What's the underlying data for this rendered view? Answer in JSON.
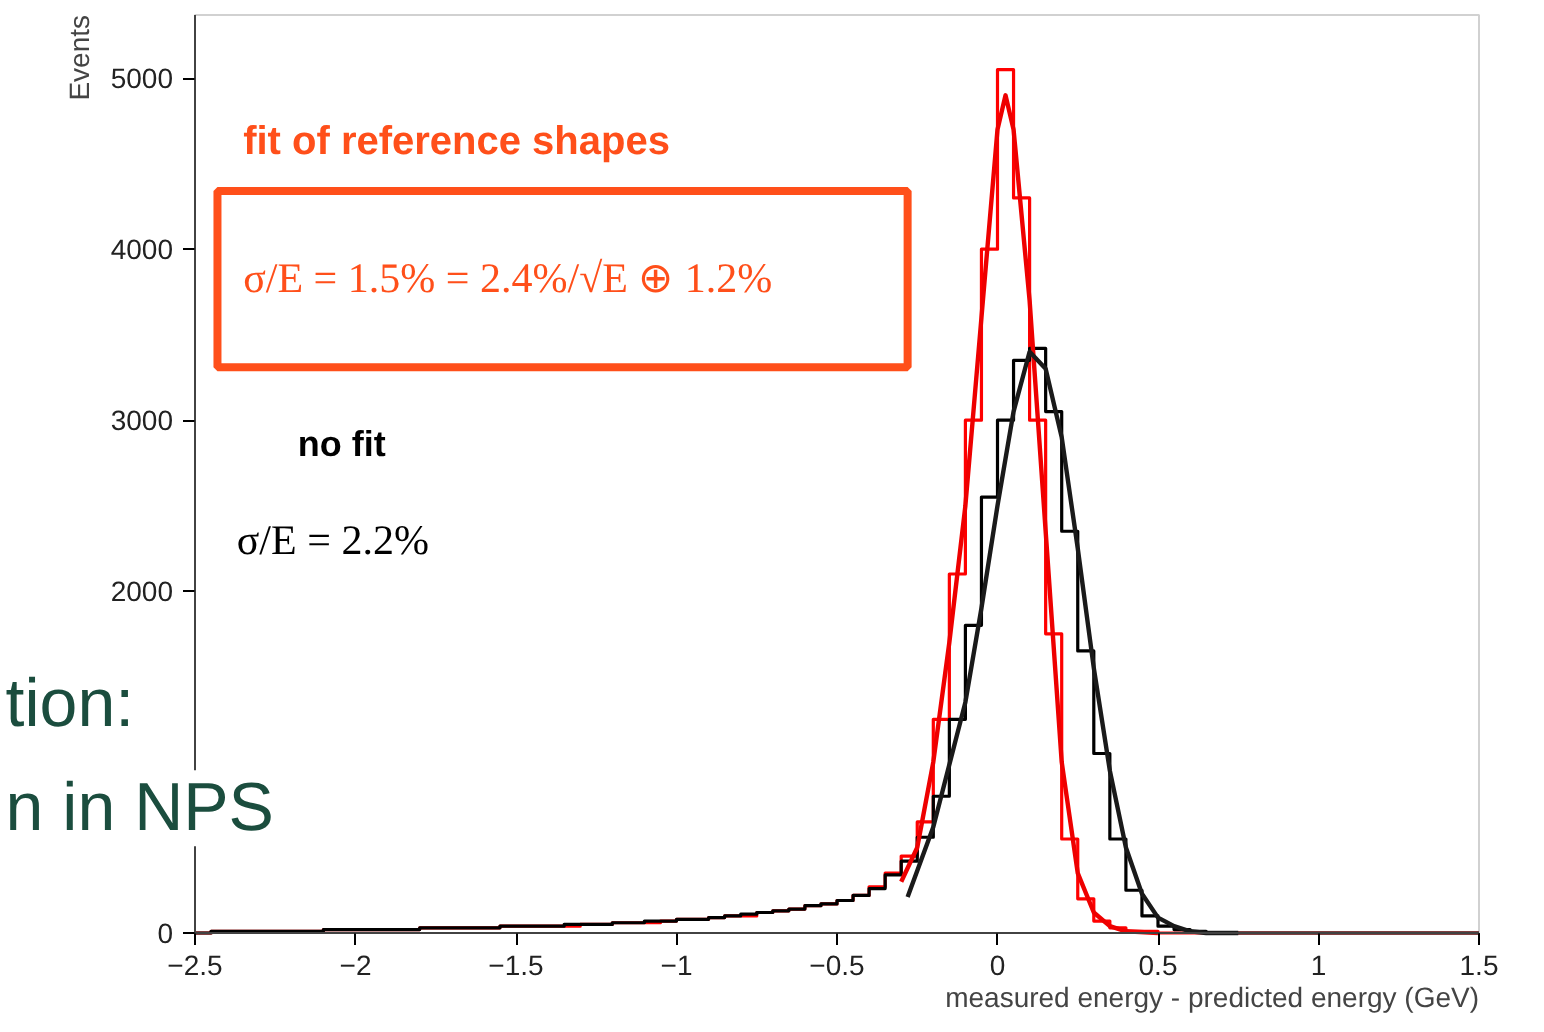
{
  "chart_data": {
    "type": "histogram",
    "xlabel": "measured energy - predicted energy (GeV)",
    "ylabel": "Events",
    "xlim": [
      -2.5,
      1.5
    ],
    "ylim": [
      0,
      5370
    ],
    "xticks": [
      -2.5,
      -2,
      -1.5,
      -1,
      -0.5,
      0,
      0.5,
      1,
      1.5
    ],
    "yticks": [
      0,
      2000,
      3000,
      4000,
      5000
    ],
    "bins": [
      -2.5,
      -2.45,
      -2.4,
      -2.35,
      -2.3,
      -2.25,
      -2.2,
      -2.15,
      -2.1,
      -2.05,
      -2.0,
      -1.95,
      -1.9,
      -1.85,
      -1.8,
      -1.75,
      -1.7,
      -1.65,
      -1.6,
      -1.55,
      -1.5,
      -1.45,
      -1.4,
      -1.35,
      -1.3,
      -1.25,
      -1.2,
      -1.15,
      -1.1,
      -1.05,
      -1.0,
      -0.95,
      -0.9,
      -0.85,
      -0.8,
      -0.75,
      -0.7,
      -0.65,
      -0.6,
      -0.55,
      -0.5,
      -0.45,
      -0.4,
      -0.35,
      -0.3,
      -0.25,
      -0.2,
      -0.15,
      -0.1,
      -0.05,
      0.0,
      0.05,
      0.1,
      0.15,
      0.2,
      0.25,
      0.3,
      0.35,
      0.4,
      0.45,
      0.5,
      0.55,
      0.6,
      0.65,
      0.7,
      0.75,
      0.8,
      0.85,
      0.9,
      0.95,
      1.0,
      1.05,
      1.1,
      1.15,
      1.2,
      1.25,
      1.3,
      1.35,
      1.4,
      1.45,
      1.5
    ],
    "series": [
      {
        "color": "#ff0000",
        "values": [
          0,
          10,
          10,
          10,
          10,
          10,
          10,
          10,
          20,
          20,
          20,
          20,
          20,
          20,
          30,
          30,
          30,
          30,
          30,
          40,
          40,
          40,
          40,
          40,
          50,
          50,
          60,
          60,
          60,
          70,
          80,
          80,
          90,
          100,
          100,
          120,
          130,
          140,
          160,
          170,
          190,
          220,
          270,
          350,
          450,
          650,
          1250,
          2100,
          3000,
          4000,
          5050,
          4300,
          3000,
          1750,
          550,
          200,
          70,
          30,
          10,
          10,
          0,
          0,
          0,
          0,
          0,
          0,
          0,
          0,
          0,
          0,
          0,
          0,
          0,
          0,
          0,
          0,
          0,
          0,
          0,
          0
        ]
      },
      {
        "color": "#000000",
        "values": [
          0,
          10,
          10,
          10,
          10,
          10,
          10,
          10,
          20,
          20,
          20,
          20,
          20,
          20,
          30,
          30,
          30,
          30,
          30,
          40,
          40,
          40,
          40,
          50,
          50,
          50,
          60,
          60,
          70,
          70,
          80,
          80,
          90,
          100,
          110,
          120,
          130,
          140,
          160,
          170,
          190,
          220,
          260,
          340,
          420,
          560,
          800,
          1250,
          1800,
          2550,
          3000,
          3350,
          3420,
          3050,
          2350,
          1650,
          1050,
          550,
          250,
          100,
          40,
          20,
          10,
          0,
          0,
          0,
          0,
          0,
          0,
          0,
          0,
          0,
          0,
          0,
          0,
          0,
          0,
          0,
          0,
          0
        ]
      },
      {
        "type": "line",
        "color": "#ee0000",
        "x": [
          -0.3,
          -0.25,
          -0.2,
          -0.15,
          -0.1,
          -0.05,
          0,
          0.025,
          0.05,
          0.1,
          0.15,
          0.2,
          0.25,
          0.3,
          0.35,
          0.4,
          0.5
        ],
        "values": [
          300,
          500,
          1000,
          1700,
          2500,
          3600,
          4700,
          4900,
          4700,
          3700,
          2350,
          1000,
          350,
          120,
          40,
          10,
          0
        ]
      },
      {
        "type": "line",
        "color": "#1a1a1a",
        "x": [
          -0.28,
          -0.2,
          -0.1,
          -0.05,
          0,
          0.05,
          0.1,
          0.15,
          0.2,
          0.25,
          0.3,
          0.35,
          0.4,
          0.45,
          0.5,
          0.55,
          0.6,
          0.65,
          0.75
        ],
        "values": [
          210,
          620,
          1350,
          1900,
          2500,
          3050,
          3400,
          3300,
          2900,
          2250,
          1550,
          950,
          500,
          230,
          90,
          40,
          10,
          0,
          0
        ]
      }
    ],
    "annotations": [
      "fit of reference shapes",
      "σ/E = 1.5% = 2.4%/√E ⊕ 1.2%",
      "no fit",
      "σ/E = 2.2%",
      "tion:",
      "n in NPS"
    ]
  }
}
